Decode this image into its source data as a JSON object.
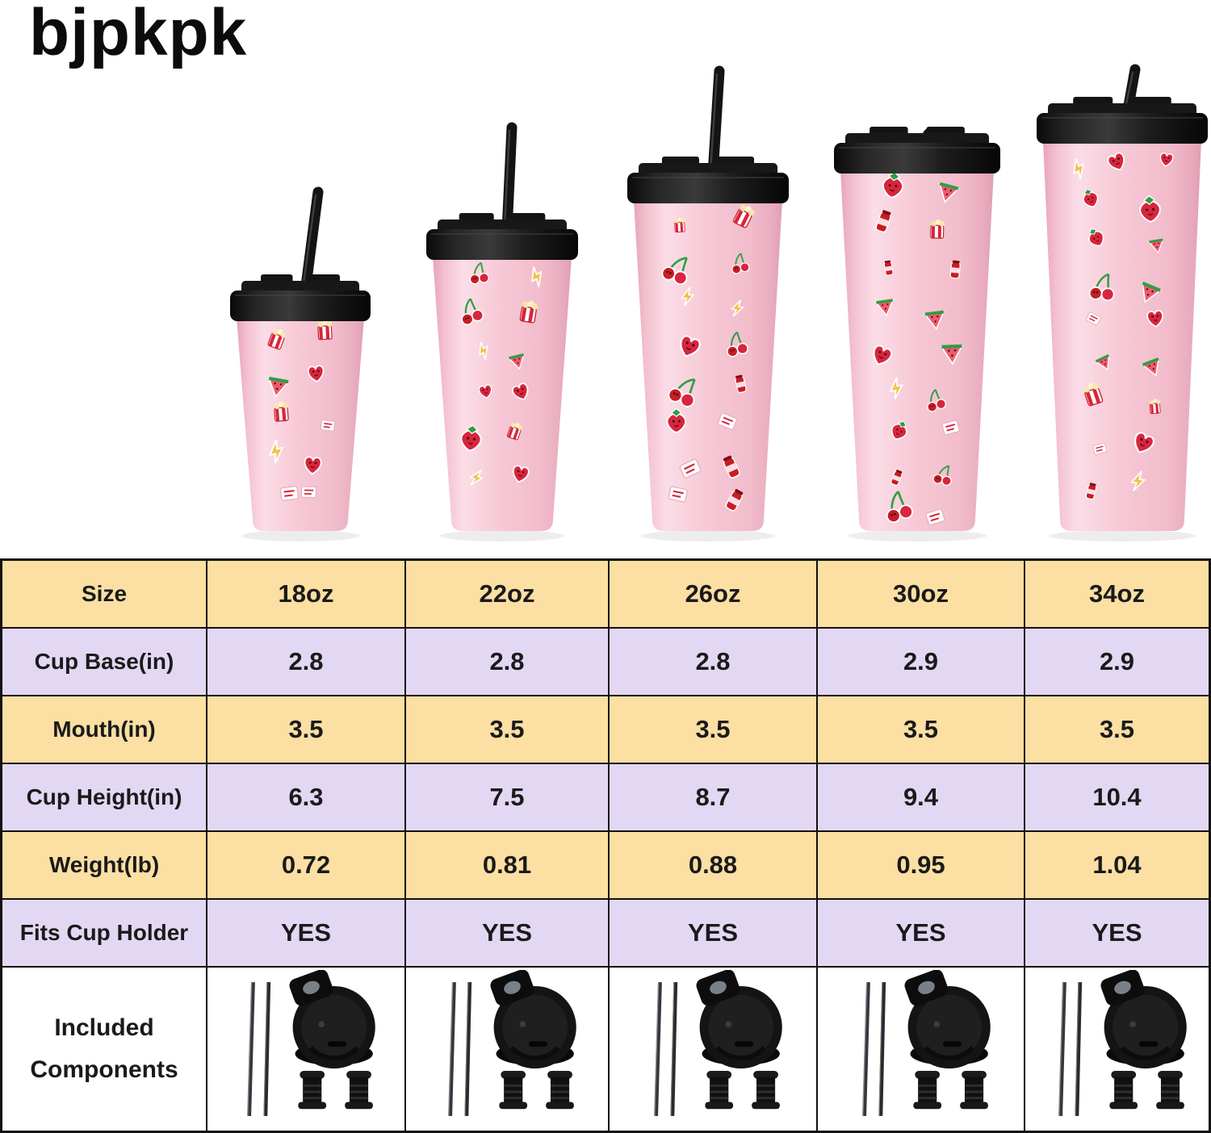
{
  "brand": {
    "logo": "bjpkpk"
  },
  "products": {
    "sizes": [
      "18oz",
      "22oz",
      "26oz",
      "30oz",
      "34oz"
    ],
    "pattern_motifs": [
      "strawberry",
      "cherries",
      "heart",
      "watermelon",
      "popcorn",
      "lightning-bolt",
      "soda-can",
      "sticker"
    ],
    "body_color": "#f6c7d4",
    "lid_color": "#1a1a1a",
    "accent_red": "#d7263d"
  },
  "table": {
    "header": {
      "label": "Size",
      "values": [
        "18oz",
        "22oz",
        "26oz",
        "30oz",
        "34oz"
      ]
    },
    "rows": [
      {
        "label": "Cup Base(in)",
        "values": [
          "2.8",
          "2.8",
          "2.8",
          "2.9",
          "2.9"
        ]
      },
      {
        "label": "Mouth(in)",
        "values": [
          "3.5",
          "3.5",
          "3.5",
          "3.5",
          "3.5"
        ]
      },
      {
        "label": "Cup Height(in)",
        "values": [
          "6.3",
          "7.5",
          "8.7",
          "9.4",
          "10.4"
        ]
      },
      {
        "label": "Weight(lb)",
        "values": [
          "0.72",
          "0.81",
          "0.88",
          "0.95",
          "1.04"
        ]
      },
      {
        "label": "Fits Cup Holder",
        "values": [
          "YES",
          "YES",
          "YES",
          "YES",
          "YES"
        ]
      }
    ],
    "components": {
      "label": "Included Components",
      "icons": [
        "metal-straws-icon",
        "flip-lid-icon",
        "straw-stoppers-icon"
      ]
    },
    "colors": {
      "row_peach": "#fbdfa3",
      "row_lavender": "#e3d8f3",
      "row_white": "#ffffff",
      "border": "#111111"
    }
  }
}
